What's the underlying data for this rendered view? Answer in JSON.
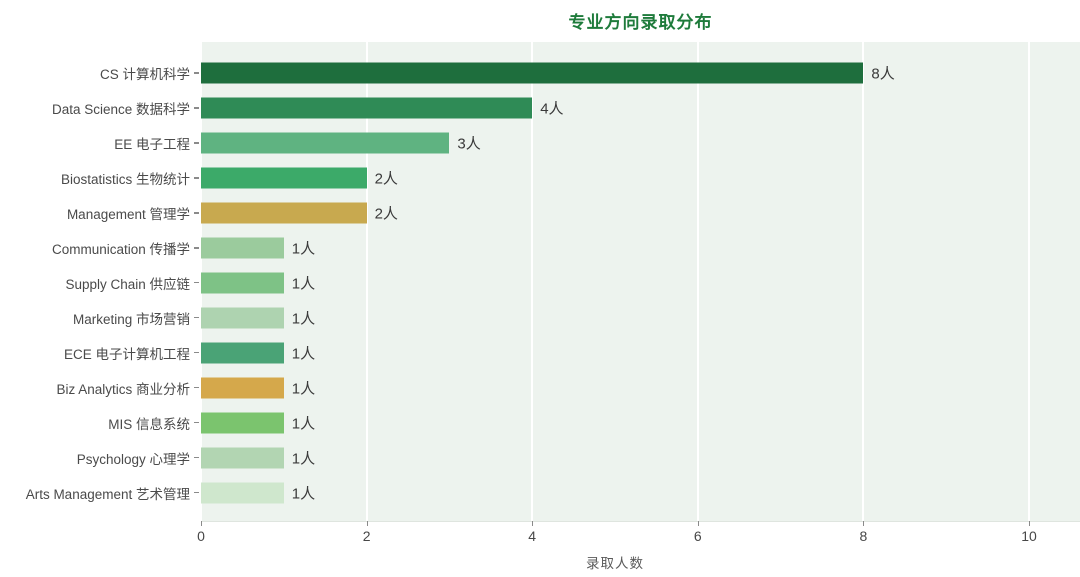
{
  "chart_data": {
    "type": "bar",
    "orientation": "horizontal",
    "title": "专业方向录取分布",
    "xlabel": "录取人数",
    "categories": [
      "CS 计算机科学",
      "Data Science 数据科学",
      "EE 电子工程",
      "Biostatistics 生物统计",
      "Management 管理学",
      "Communication 传播学",
      "Supply Chain 供应链",
      "Marketing 市场营销",
      "ECE 电子计算机工程",
      "Biz Analytics 商业分析",
      "MIS 信息系统",
      "Psychology 心理学",
      "Arts Management 艺术管理"
    ],
    "values": [
      8,
      4,
      3,
      2,
      2,
      1,
      1,
      1,
      1,
      1,
      1,
      1,
      1
    ],
    "value_labels": [
      "8人",
      "4人",
      "3人",
      "2人",
      "2人",
      "1人",
      "1人",
      "1人",
      "1人",
      "1人",
      "1人",
      "1人",
      "1人"
    ],
    "bar_colors": [
      "#1e6e3d",
      "#2f8b56",
      "#5fb381",
      "#3caa69",
      "#c8a94f",
      "#9bcb9d",
      "#7ec286",
      "#aed3b0",
      "#4aa376",
      "#d5a84b",
      "#7bc46e",
      "#b2d5b2",
      "#cfe7cd"
    ],
    "xticks": [
      "0",
      "2",
      "4",
      "6",
      "8",
      "10"
    ],
    "xtick_values": [
      0,
      2,
      4,
      6,
      8,
      10
    ],
    "xlim": [
      0,
      10.6
    ],
    "grid": true,
    "legend": "none",
    "colors": {
      "title": "#1e7b3b",
      "plot_background": "#edf3ee",
      "gridline": "#ffffff",
      "category_text": "#4a4a4a",
      "value_text": "#3a3a3a",
      "tick_text": "#474747"
    }
  }
}
